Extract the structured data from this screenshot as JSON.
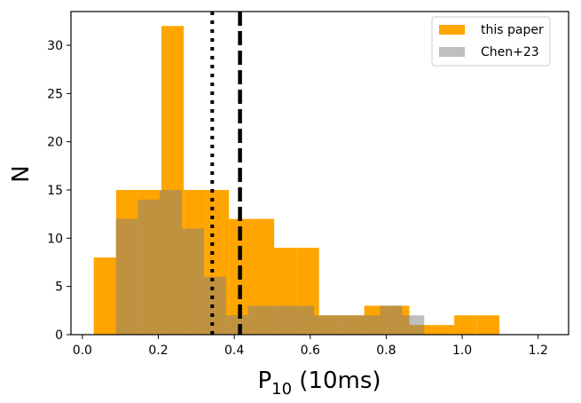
{
  "chart_data": {
    "type": "histogram",
    "xlabel_main": "P",
    "xlabel_sub": "10",
    "xlabel_rest": " (10ms)",
    "ylabel": "N",
    "xlim": [
      -0.03,
      1.28
    ],
    "ylim": [
      0,
      33.5
    ],
    "xticks": [
      0.0,
      0.2,
      0.4,
      0.6,
      0.8,
      1.0,
      1.2
    ],
    "xtick_labels": [
      "0.0",
      "0.2",
      "0.4",
      "0.6",
      "0.8",
      "1.0",
      "1.2"
    ],
    "yticks": [
      0,
      5,
      10,
      15,
      20,
      25,
      30
    ],
    "ytick_labels": [
      "0",
      "5",
      "10",
      "15",
      "20",
      "25",
      "30"
    ],
    "series": [
      {
        "name": "this paper",
        "color": "#ffa500",
        "opacity": 1.0,
        "bin_edges": [
          0.03,
          0.089,
          0.149,
          0.208,
          0.267,
          0.327,
          0.386,
          0.445,
          0.505,
          0.564,
          0.623,
          0.683,
          0.742,
          0.801,
          0.861,
          0.92,
          0.979,
          1.039,
          1.098,
          1.157,
          1.217
        ],
        "counts": [
          8,
          15,
          15,
          32,
          15,
          15,
          12,
          12,
          9,
          9,
          2,
          2,
          3,
          3,
          1,
          1,
          2,
          2,
          0,
          0
        ]
      },
      {
        "name": "Chen+23",
        "color": "#808080",
        "opacity": 0.5,
        "bin_edges": [
          0.088,
          0.146,
          0.204,
          0.262,
          0.32,
          0.378,
          0.436,
          0.494,
          0.552,
          0.61,
          0.668,
          0.726,
          0.784,
          0.842,
          0.9
        ],
        "counts": [
          12,
          14,
          15,
          11,
          6,
          2,
          3,
          3,
          3,
          2,
          2,
          2,
          3,
          2
        ]
      }
    ],
    "vlines": [
      {
        "name": "dotted-line",
        "x": 0.342,
        "style": "dotted",
        "color": "#000000"
      },
      {
        "name": "dashed-line",
        "x": 0.415,
        "style": "dashed",
        "color": "#000000"
      }
    ],
    "legend": [
      {
        "label": "this paper",
        "color": "#ffa500"
      },
      {
        "label": "Chen+23",
        "color": "#bfbfbf"
      }
    ],
    "legend_position": "top-right"
  }
}
